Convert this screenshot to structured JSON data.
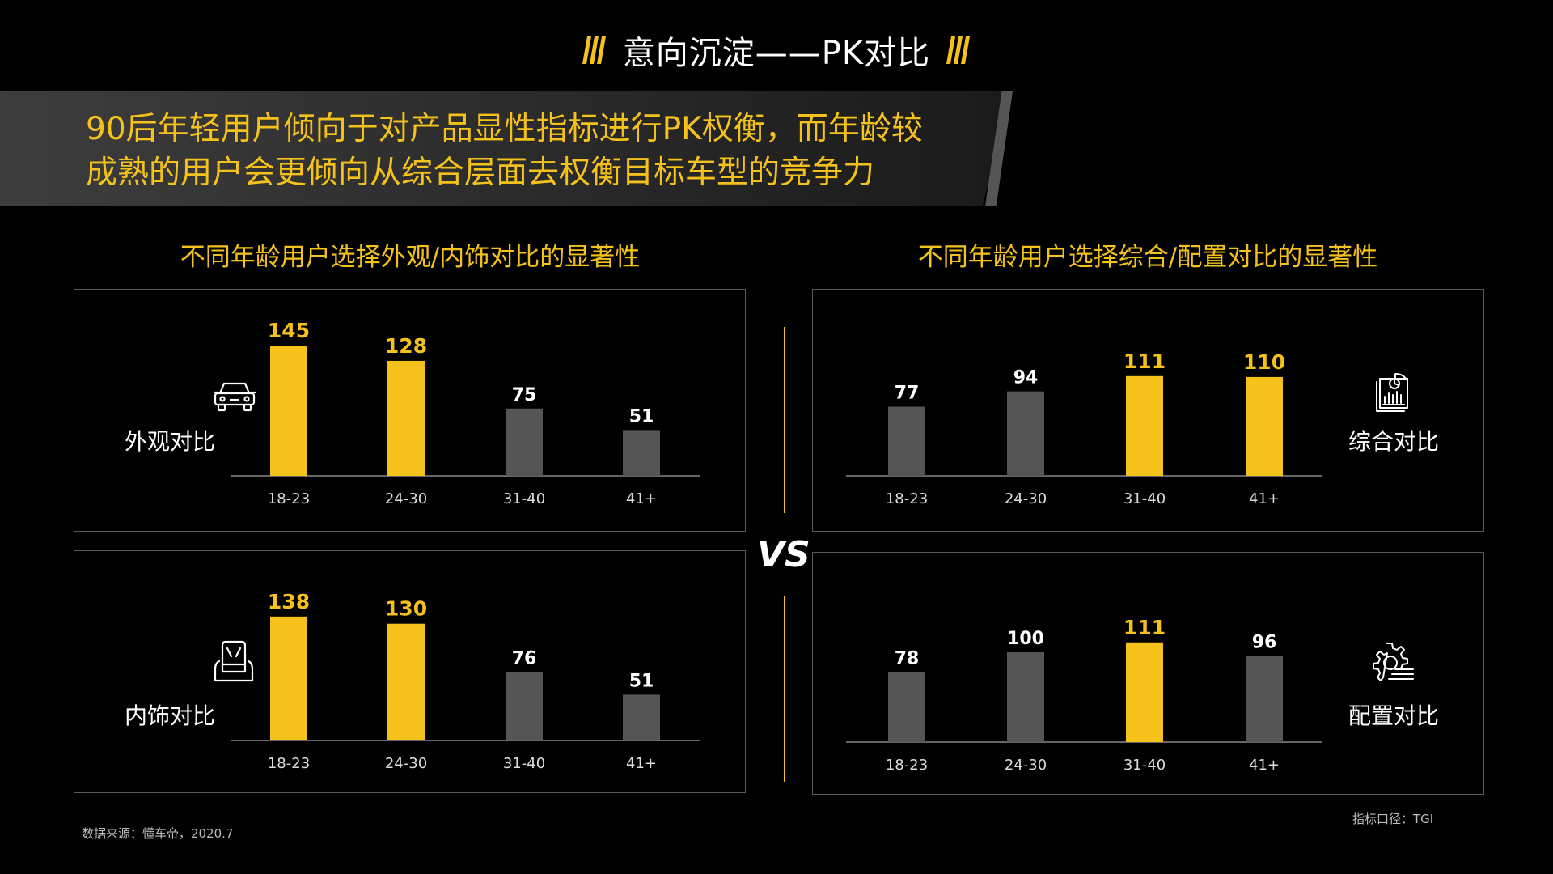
{
  "header": {
    "title": "意向沉淀——PK对比"
  },
  "banner": {
    "line1": "90后年轻用户倾向于对产品显性指标进行PK权衡，而年龄较",
    "line2": "成熟的用户会更倾向从综合层面去权衡目标车型的竞争力"
  },
  "left_section_title": "不同年龄用户选择外观/内饰对比的显著性",
  "right_section_title": "不同年龄用户选择综合/配置对比的显著性",
  "vs_label": "VS",
  "footer": {
    "source": "数据来源：懂车帝，2020.7",
    "metric": "指标口径：TGI"
  },
  "colors": {
    "highlight": "#f5c21b",
    "normal": "#555555",
    "background": "#000000"
  },
  "chart_data": [
    {
      "type": "bar",
      "label": "外观对比",
      "icon": "car-icon",
      "categories": [
        "18-23",
        "24-30",
        "31-40",
        "41+"
      ],
      "values": [
        145,
        128,
        75,
        51
      ],
      "highlight": [
        true,
        true,
        false,
        false
      ]
    },
    {
      "type": "bar",
      "label": "内饰对比",
      "icon": "car-seat-icon",
      "categories": [
        "18-23",
        "24-30",
        "31-40",
        "41+"
      ],
      "values": [
        138,
        130,
        76,
        51
      ],
      "highlight": [
        true,
        true,
        false,
        false
      ]
    },
    {
      "type": "bar",
      "label": "综合对比",
      "icon": "report-chart-icon",
      "categories": [
        "18-23",
        "24-30",
        "31-40",
        "41+"
      ],
      "values": [
        77,
        94,
        111,
        110
      ],
      "highlight": [
        false,
        false,
        true,
        true
      ]
    },
    {
      "type": "bar",
      "label": "配置对比",
      "icon": "gear-list-icon",
      "categories": [
        "18-23",
        "24-30",
        "31-40",
        "41+"
      ],
      "values": [
        78,
        100,
        111,
        96
      ],
      "highlight": [
        false,
        false,
        true,
        false
      ]
    }
  ]
}
